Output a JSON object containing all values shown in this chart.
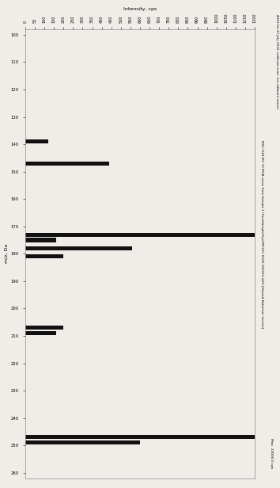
{
  "title": "Intensity, cps",
  "ylabel": "m/z, Da",
  "right_label_main": "MS2 (244.90) 72 MCA scans from Sample 1 (TuneSample(Dye)MT22C-0320-160023.wiff) [Heated Nebulizer (on)ive]",
  "right_label_bottom": "Max. 13000.0 cps",
  "top_right_label": "A163 for 27.July 2010, calibrant scan: (no calibrant name)",
  "y_min": 100,
  "y_max": 260,
  "x_min": 0,
  "x_max": 1200,
  "x_ticks": [
    0,
    50,
    100,
    150,
    200,
    250,
    300,
    350,
    400,
    450,
    500,
    550,
    600,
    650,
    700,
    750,
    800,
    850,
    900,
    950,
    1000,
    1050,
    1100,
    1150,
    1200
  ],
  "y_ticks": [
    100,
    110,
    120,
    130,
    140,
    150,
    160,
    170,
    180,
    190,
    200,
    210,
    220,
    230,
    240,
    250,
    260
  ],
  "bars": [
    {
      "y": 139,
      "intensity": 120
    },
    {
      "y": 147,
      "intensity": 440
    },
    {
      "y": 173,
      "intensity": 1200
    },
    {
      "y": 175,
      "intensity": 160
    },
    {
      "y": 178,
      "intensity": 560
    },
    {
      "y": 181,
      "intensity": 200
    },
    {
      "y": 207,
      "intensity": 200
    },
    {
      "y": 209,
      "intensity": 160
    },
    {
      "y": 247,
      "intensity": 13000
    },
    {
      "y": 249,
      "intensity": 600
    }
  ],
  "bar_color": "#111111",
  "background_color": "#f0ede8",
  "fig_width": 3.54,
  "fig_height": 6.16,
  "dpi": 100
}
